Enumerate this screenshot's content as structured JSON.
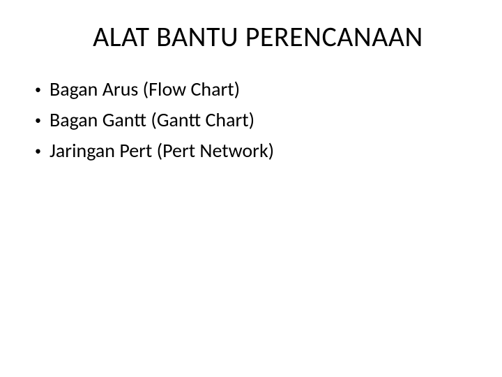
{
  "slide": {
    "title": "ALAT BANTU PERENCANAAN",
    "title_fontsize": 40,
    "title_color": "#000000",
    "bullets": [
      {
        "text": "Bagan Arus (Flow Chart)"
      },
      {
        "text": "Bagan Gantt (Gantt Chart)"
      },
      {
        "text": "Jaringan Pert (Pert Network)"
      }
    ],
    "bullet_fontsize": 28,
    "bullet_color": "#000000",
    "bullet_marker": "•",
    "background_color": "#ffffff",
    "font_family": "Calibri"
  }
}
